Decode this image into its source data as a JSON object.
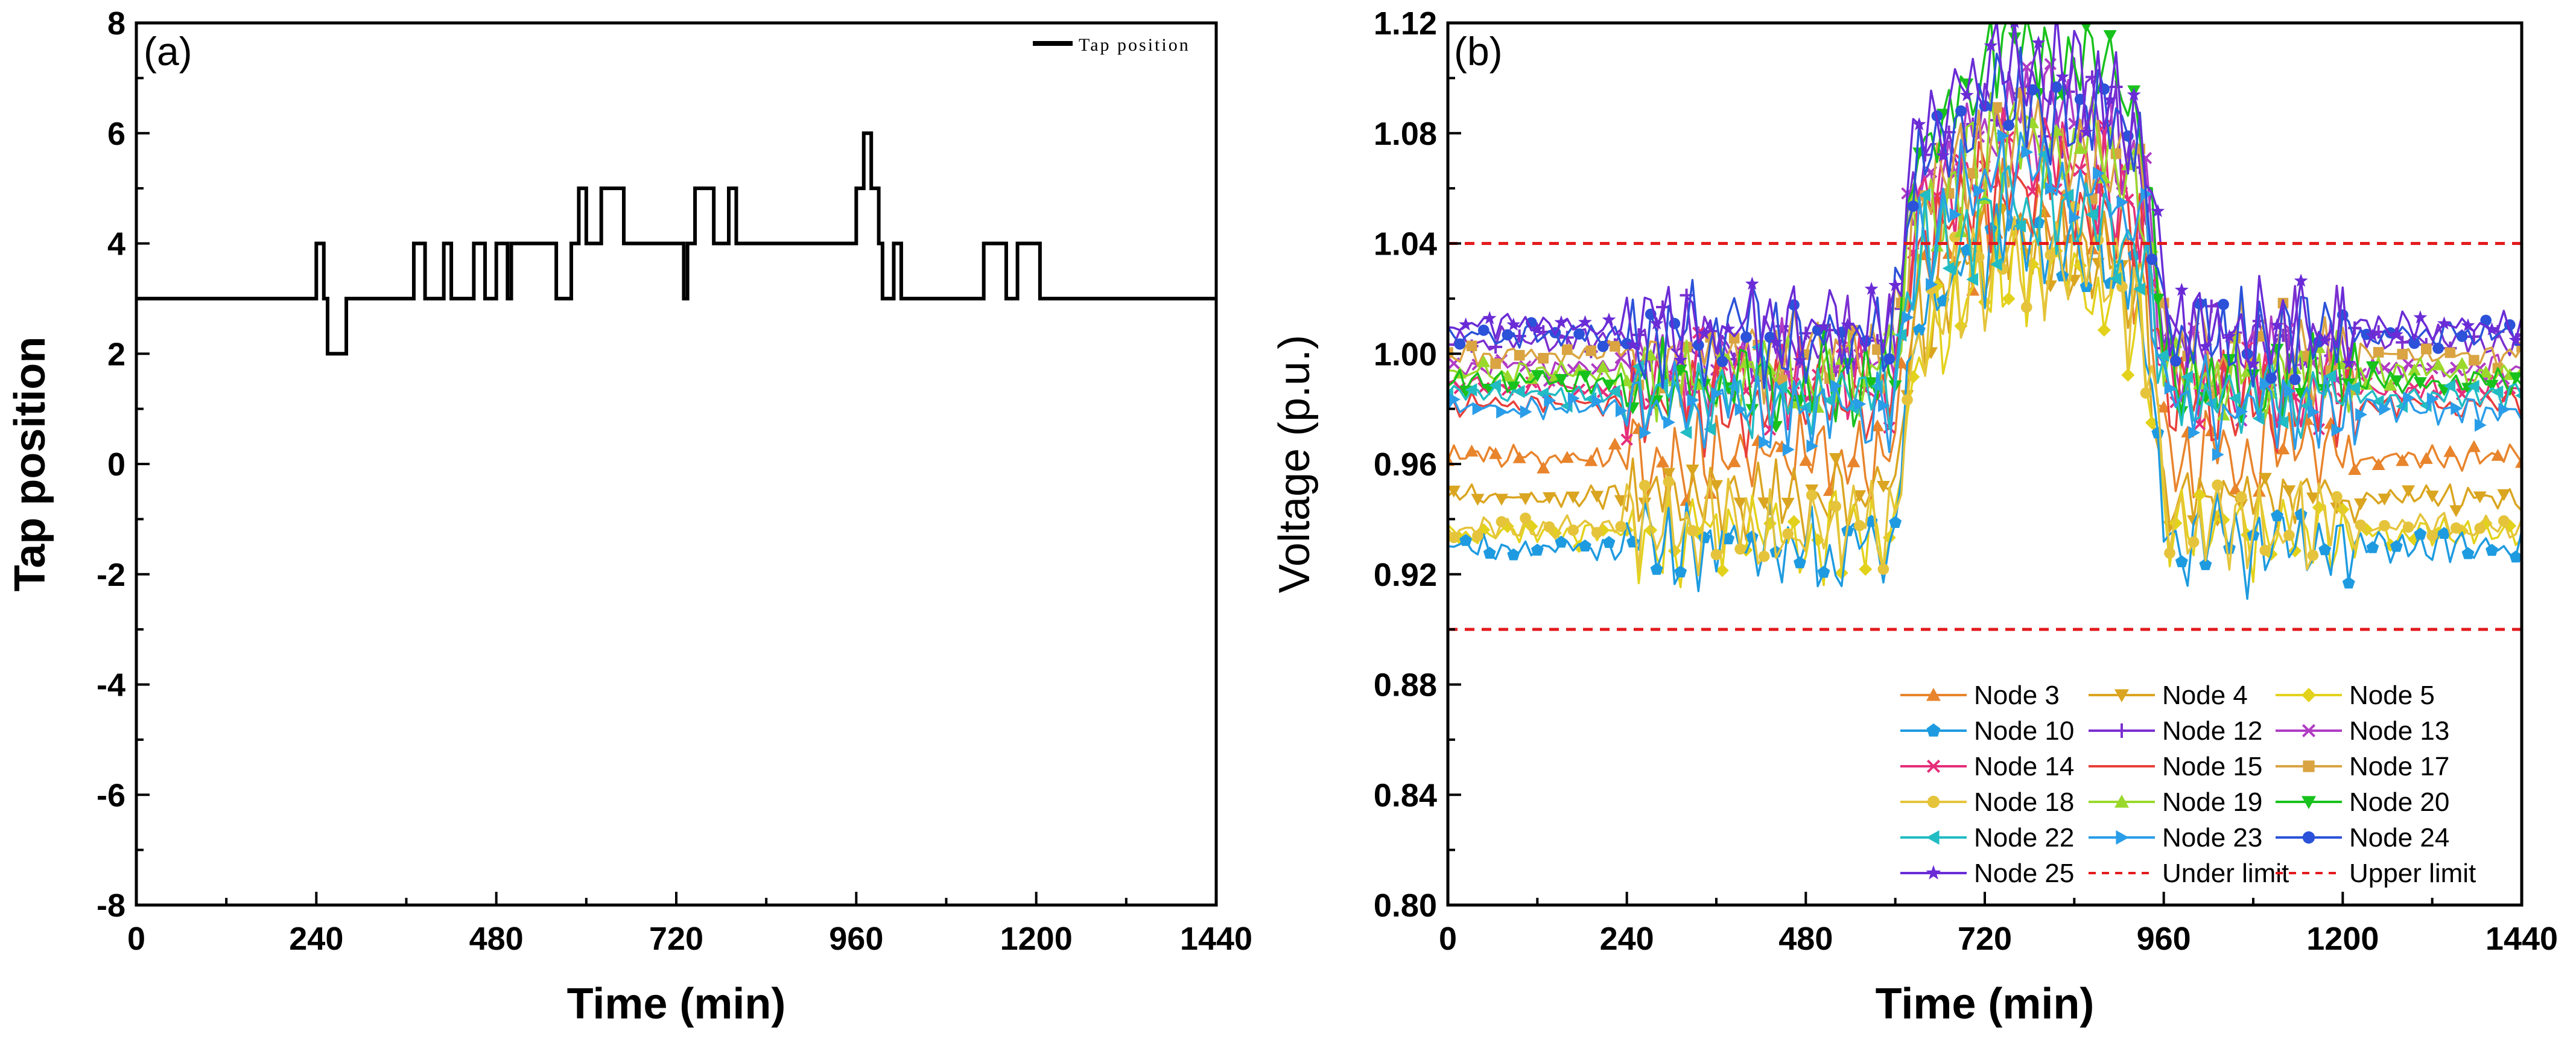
{
  "chart_data": [
    {
      "panel": "(a)",
      "type": "line",
      "xlabel": "Time (min)",
      "ylabel": "Tap position",
      "xlim": [
        0,
        1440
      ],
      "ylim": [
        -8,
        8
      ],
      "xticks": [
        0,
        240,
        480,
        720,
        960,
        1200,
        1440
      ],
      "yticks": [
        -8,
        -6,
        -4,
        -2,
        0,
        2,
        4,
        6,
        8
      ],
      "legend": [
        "Tap position"
      ],
      "legend_position": "top-right",
      "series": [
        {
          "name": "Tap position",
          "color": "#000000",
          "step_changes": [
            [
              0,
              3
            ],
            [
              240,
              4
            ],
            [
              250,
              3
            ],
            [
              255,
              2
            ],
            [
              280,
              3
            ],
            [
              370,
              4
            ],
            [
              385,
              3
            ],
            [
              410,
              4
            ],
            [
              420,
              3
            ],
            [
              450,
              4
            ],
            [
              465,
              3
            ],
            [
              480,
              4
            ],
            [
              495,
              3
            ],
            [
              500,
              4
            ],
            [
              560,
              3
            ],
            [
              580,
              4
            ],
            [
              590,
              5
            ],
            [
              600,
              4
            ],
            [
              620,
              5
            ],
            [
              650,
              4
            ],
            [
              730,
              3
            ],
            [
              735,
              4
            ],
            [
              745,
              5
            ],
            [
              770,
              4
            ],
            [
              790,
              5
            ],
            [
              800,
              4
            ],
            [
              960,
              5
            ],
            [
              970,
              6
            ],
            [
              980,
              5
            ],
            [
              990,
              4
            ],
            [
              995,
              3
            ],
            [
              1010,
              4
            ],
            [
              1020,
              3
            ],
            [
              1130,
              4
            ],
            [
              1160,
              3
            ],
            [
              1175,
              4
            ],
            [
              1205,
              3
            ],
            [
              1440,
              3
            ]
          ]
        }
      ]
    },
    {
      "panel": "(b)",
      "type": "line",
      "xlabel": "Time (min)",
      "ylabel": "Voltage (p.u.)",
      "xlim": [
        0,
        1440
      ],
      "ylim": [
        0.8,
        1.12
      ],
      "xticks": [
        0,
        240,
        480,
        720,
        960,
        1200,
        1440
      ],
      "yticks": [
        0.8,
        0.84,
        0.88,
        0.92,
        0.96,
        1.0,
        1.04,
        1.08,
        1.12
      ],
      "ytick_labels": [
        "0.80",
        "0.84",
        "0.88",
        "0.92",
        "0.96",
        "1.00",
        "1.04",
        "1.08",
        "1.12"
      ],
      "legend_position": "bottom-right",
      "limits": [
        {
          "name": "Under limit",
          "value": 0.9,
          "color": "#e31a1c"
        },
        {
          "name": "Upper limit",
          "value": 1.04,
          "color": "#e31a1c"
        }
      ],
      "series": [
        {
          "name": "Node 3",
          "color": "#e8842c",
          "marker": "triangle-up",
          "base": 0.963,
          "peak": 1.05
        },
        {
          "name": "Node 4",
          "color": "#daa520",
          "marker": "triangle-down",
          "base": 0.948,
          "peak": 1.04
        },
        {
          "name": "Node 5",
          "color": "#e3d21c",
          "marker": "diamond",
          "base": 0.935,
          "peak": 1.03
        },
        {
          "name": "Node 10",
          "color": "#1e9be0",
          "marker": "pentagon",
          "base": 0.93,
          "peak": 1.045
        },
        {
          "name": "Node 12",
          "color": "#7b2fd0",
          "marker": "plus",
          "base": 1.005,
          "peak": 1.095
        },
        {
          "name": "Node 13",
          "color": "#b03cc4",
          "marker": "x",
          "base": 0.995,
          "peak": 1.085
        },
        {
          "name": "Node 14",
          "color": "#e52e7a",
          "marker": "x",
          "base": 0.988,
          "peak": 1.07
        },
        {
          "name": "Node 15",
          "color": "#e8403a",
          "marker": "none",
          "base": 0.982,
          "peak": 1.06
        },
        {
          "name": "Node 17",
          "color": "#d9a441",
          "marker": "square",
          "base": 1.0,
          "peak": 1.08
        },
        {
          "name": "Node 18",
          "color": "#e5c43c",
          "marker": "circle",
          "base": 0.937,
          "peak": 1.035
        },
        {
          "name": "Node 19",
          "color": "#9ad92c",
          "marker": "triangle-up",
          "base": 0.993,
          "peak": 1.075
        },
        {
          "name": "Node 20",
          "color": "#18c21c",
          "marker": "triangle-down",
          "base": 0.99,
          "peak": 1.11
        },
        {
          "name": "Node 22",
          "color": "#21bcc4",
          "marker": "triangle-left",
          "base": 0.985,
          "peak": 1.055
        },
        {
          "name": "Node 23",
          "color": "#2a9de8",
          "marker": "triangle-right",
          "base": 0.98,
          "peak": 1.065
        },
        {
          "name": "Node 24",
          "color": "#2b52d9",
          "marker": "circle",
          "base": 1.007,
          "peak": 1.09
        },
        {
          "name": "Node 25",
          "color": "#6a2cd6",
          "marker": "star",
          "base": 1.01,
          "peak": 1.105
        }
      ],
      "legend": [
        "Node 3",
        "Node 4",
        "Node 5",
        "Node 10",
        "Node 12",
        "Node 13",
        "Node 14",
        "Node 15",
        "Node 17",
        "Node 18",
        "Node 19",
        "Node 20",
        "Node 22",
        "Node 23",
        "Node 24",
        "Node 25",
        "Under limit",
        "Upper limit"
      ]
    }
  ]
}
